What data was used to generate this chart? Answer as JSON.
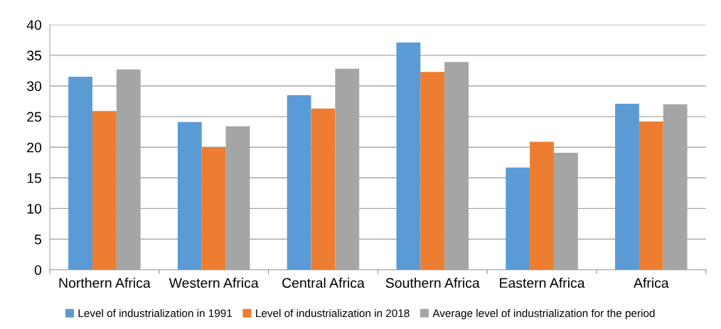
{
  "chart_data": {
    "type": "bar",
    "categories": [
      "Northern Africa",
      "Western Africa",
      "Central Africa",
      "Southern Africa",
      "Eastern Africa",
      "Africa"
    ],
    "series": [
      {
        "name": "Level of industrialization in 1991",
        "color": "#5b9bd5",
        "values": [
          31.5,
          24.1,
          28.5,
          37.1,
          16.7,
          27.1
        ]
      },
      {
        "name": "Level of industrialization in 2018",
        "color": "#ed7d31",
        "values": [
          25.9,
          20.0,
          26.3,
          32.3,
          20.9,
          24.2
        ]
      },
      {
        "name": "Average level of industrialization for the period",
        "color": "#a5a5a5",
        "values": [
          32.7,
          23.4,
          32.8,
          33.9,
          19.1,
          27.0
        ]
      }
    ],
    "ylim": [
      0,
      40
    ],
    "yticks": [
      0,
      5,
      10,
      15,
      20,
      25,
      30,
      35,
      40
    ],
    "grid": "y",
    "legend": "bottom"
  }
}
